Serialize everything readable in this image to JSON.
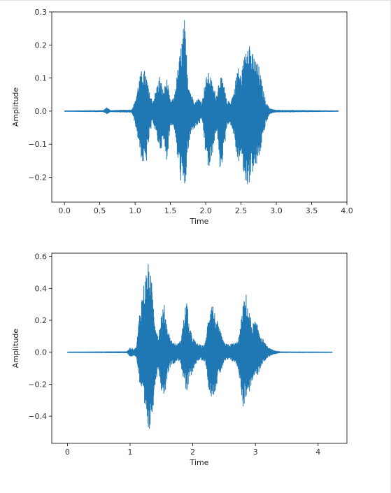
{
  "colors": {
    "wave": "#1f77b4",
    "axes": "#000000",
    "text": "#333333"
  },
  "chart_data": [
    {
      "type": "line",
      "title": "",
      "xlabel": "Time",
      "ylabel": "Amplitude",
      "xlim": [
        -0.18,
        4.0
      ],
      "ylim": [
        -0.275,
        0.3
      ],
      "grid": false,
      "xticks": [
        0.0,
        0.5,
        1.0,
        1.5,
        2.0,
        2.5,
        3.0,
        3.5,
        4.0
      ],
      "xtick_labels": [
        "0.0",
        "0.5",
        "1.0",
        "1.5",
        "2.0",
        "2.5",
        "3.0",
        "3.5",
        "4.0"
      ],
      "yticks": [
        0.3,
        0.2,
        0.1,
        0.0,
        -0.1,
        -0.2
      ],
      "ytick_labels": [
        "0.3",
        "0.2",
        "0.1",
        "0.0",
        "−0.1",
        "−0.2"
      ],
      "duration": 3.88,
      "envelope": {
        "x": [
          0.0,
          0.55,
          0.6,
          0.65,
          0.95,
          1.0,
          1.05,
          1.1,
          1.15,
          1.2,
          1.25,
          1.3,
          1.35,
          1.4,
          1.45,
          1.5,
          1.55,
          1.6,
          1.65,
          1.7,
          1.75,
          1.8,
          1.85,
          1.9,
          1.95,
          2.0,
          2.05,
          2.1,
          2.15,
          2.2,
          2.25,
          2.3,
          2.35,
          2.4,
          2.45,
          2.5,
          2.55,
          2.6,
          2.65,
          2.7,
          2.75,
          2.8,
          2.85,
          2.9,
          2.95,
          3.0,
          3.88
        ],
        "upper": [
          0.001,
          0.002,
          0.012,
          0.002,
          0.004,
          0.03,
          0.09,
          0.13,
          0.12,
          0.06,
          0.03,
          0.07,
          0.11,
          0.06,
          0.1,
          0.03,
          0.04,
          0.12,
          0.2,
          0.28,
          0.1,
          0.05,
          0.03,
          0.04,
          0.03,
          0.1,
          0.12,
          0.08,
          0.05,
          0.11,
          0.09,
          0.03,
          0.03,
          0.06,
          0.14,
          0.11,
          0.17,
          0.25,
          0.18,
          0.16,
          0.14,
          0.08,
          0.03,
          0.01,
          0.005,
          0.003,
          0.001
        ],
        "lower": [
          -0.001,
          -0.002,
          -0.008,
          -0.002,
          -0.004,
          -0.04,
          -0.1,
          -0.16,
          -0.17,
          -0.08,
          -0.03,
          -0.08,
          -0.12,
          -0.1,
          -0.15,
          -0.04,
          -0.05,
          -0.15,
          -0.22,
          -0.25,
          -0.12,
          -0.06,
          -0.05,
          -0.04,
          -0.03,
          -0.14,
          -0.19,
          -0.12,
          -0.06,
          -0.18,
          -0.14,
          -0.04,
          -0.04,
          -0.08,
          -0.16,
          -0.14,
          -0.22,
          -0.23,
          -0.19,
          -0.18,
          -0.15,
          -0.09,
          -0.04,
          -0.01,
          -0.005,
          -0.003,
          -0.001
        ]
      }
    },
    {
      "type": "line",
      "title": "",
      "xlabel": "Time",
      "ylabel": "Amplitude",
      "xlim": [
        -0.25,
        4.46
      ],
      "ylim": [
        -0.57,
        0.62
      ],
      "grid": false,
      "xticks": [
        0,
        1,
        2,
        3,
        4
      ],
      "xtick_labels": [
        "0",
        "1",
        "2",
        "3",
        "4"
      ],
      "yticks": [
        0.6,
        0.4,
        0.2,
        0.0,
        -0.2,
        -0.4
      ],
      "ytick_labels": [
        "0.6",
        "0.4",
        "0.2",
        "0.0",
        "−0.2",
        "−0.4"
      ],
      "duration": 4.23,
      "envelope": {
        "x": [
          0.0,
          0.95,
          1.0,
          1.05,
          1.1,
          1.15,
          1.2,
          1.25,
          1.3,
          1.35,
          1.4,
          1.45,
          1.5,
          1.55,
          1.6,
          1.65,
          1.7,
          1.75,
          1.8,
          1.85,
          1.9,
          1.95,
          2.0,
          2.05,
          2.1,
          2.15,
          2.2,
          2.25,
          2.3,
          2.35,
          2.4,
          2.45,
          2.5,
          2.55,
          2.6,
          2.65,
          2.7,
          2.75,
          2.8,
          2.85,
          2.9,
          2.95,
          3.0,
          3.05,
          3.1,
          3.15,
          3.2,
          3.3,
          3.4,
          4.23
        ],
        "upper": [
          0.002,
          0.004,
          0.03,
          0.02,
          0.03,
          0.25,
          0.4,
          0.5,
          0.57,
          0.42,
          0.2,
          0.1,
          0.25,
          0.3,
          0.15,
          0.08,
          0.06,
          0.05,
          0.07,
          0.2,
          0.35,
          0.15,
          0.1,
          0.06,
          0.05,
          0.04,
          0.06,
          0.23,
          0.35,
          0.25,
          0.18,
          0.12,
          0.06,
          0.05,
          0.05,
          0.06,
          0.06,
          0.12,
          0.3,
          0.37,
          0.26,
          0.18,
          0.2,
          0.15,
          0.1,
          0.06,
          0.03,
          0.01,
          0.003,
          0.002
        ],
        "lower": [
          -0.002,
          -0.004,
          -0.03,
          -0.02,
          -0.03,
          -0.2,
          -0.3,
          -0.45,
          -0.52,
          -0.4,
          -0.2,
          -0.1,
          -0.25,
          -0.27,
          -0.13,
          -0.08,
          -0.07,
          -0.05,
          -0.06,
          -0.18,
          -0.27,
          -0.17,
          -0.12,
          -0.07,
          -0.05,
          -0.05,
          -0.06,
          -0.23,
          -0.28,
          -0.26,
          -0.17,
          -0.12,
          -0.06,
          -0.05,
          -0.05,
          -0.06,
          -0.08,
          -0.18,
          -0.35,
          -0.28,
          -0.25,
          -0.18,
          -0.15,
          -0.14,
          -0.08,
          -0.05,
          -0.03,
          -0.01,
          -0.003,
          -0.002
        ]
      }
    }
  ]
}
